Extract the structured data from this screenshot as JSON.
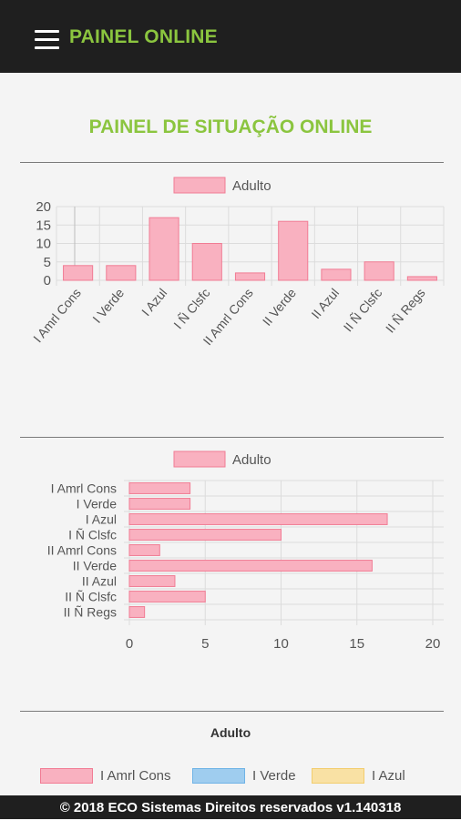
{
  "header": {
    "title": "PAINEL ONLINE"
  },
  "panel": {
    "title": "PAINEL DE SITUAÇÃO ONLINE"
  },
  "colors": {
    "accent": "#8bc53f",
    "bar_fill": "#f9b1c0",
    "bar_stroke": "#f17c94",
    "blue": "#9fcdef",
    "yellow": "#f9e1a4"
  },
  "chart_data": [
    {
      "type": "bar",
      "orientation": "vertical",
      "legend": "Adulto",
      "categories": [
        "I Amrl Cons",
        "I Verde",
        "I Azul",
        "I Ñ Clsfc",
        "II Amrl Cons",
        "II Verde",
        "II Azul",
        "II Ñ Clsfc",
        "II Ñ Regs"
      ],
      "series": [
        {
          "name": "Adulto",
          "values": [
            4,
            4,
            17,
            10,
            2,
            16,
            3,
            5,
            1
          ]
        }
      ],
      "ylim": [
        0,
        20
      ],
      "yticks": [
        "0",
        "5",
        "10",
        "15",
        "20"
      ],
      "grid": true
    },
    {
      "type": "bar",
      "orientation": "horizontal",
      "legend": "Adulto",
      "categories": [
        "I Amrl Cons",
        "I Verde",
        "I Azul",
        "I Ñ Clsfc",
        "II Amrl Cons",
        "II Verde",
        "II Azul",
        "II Ñ Clsfc",
        "II Ñ Regs"
      ],
      "series": [
        {
          "name": "Adulto",
          "values": [
            4,
            4,
            17,
            10,
            2,
            16,
            3,
            5,
            1
          ]
        }
      ],
      "xlim": [
        0,
        20
      ],
      "xticks": [
        "0",
        "5",
        "10",
        "15",
        "20"
      ],
      "grid": true
    },
    {
      "type": "pie",
      "title": "Adulto",
      "legend": [
        {
          "label": "I Amrl Cons",
          "color": "#f9b1c0"
        },
        {
          "label": "I Verde",
          "color": "#9fcdef"
        },
        {
          "label": "I Azul",
          "color": "#f9e1a4"
        }
      ]
    }
  ],
  "footer": {
    "text": "© 2018 ECO Sistemas Direitos reservados v1.140318"
  }
}
